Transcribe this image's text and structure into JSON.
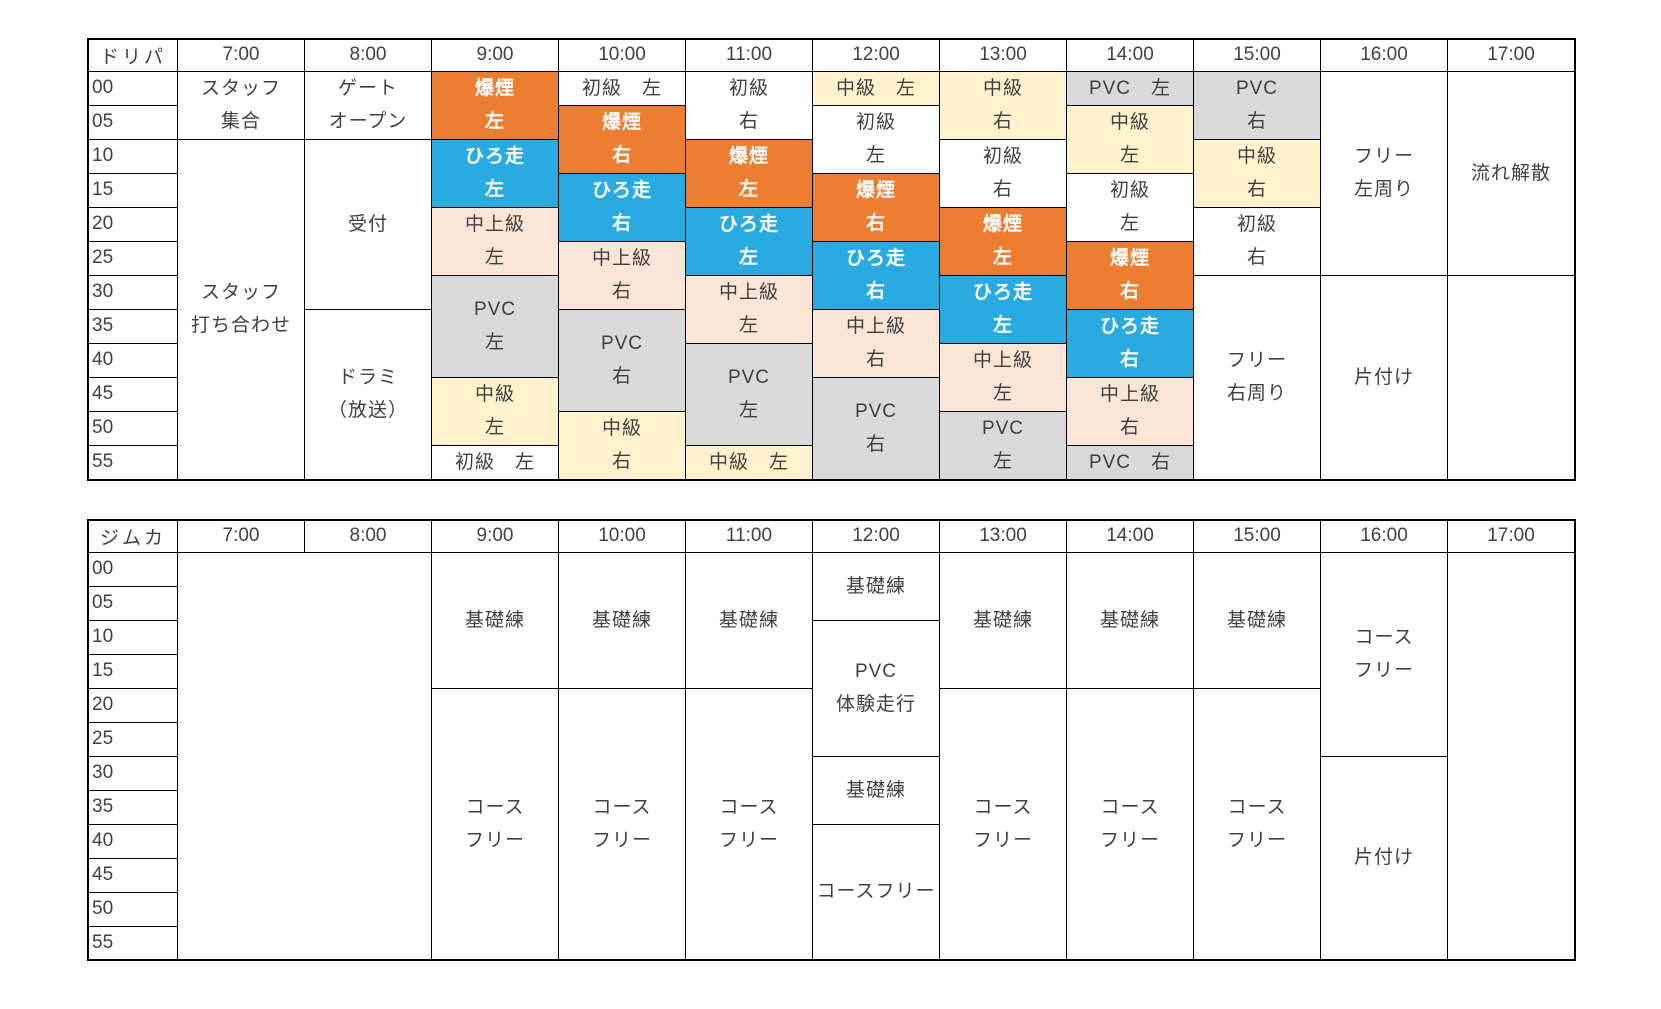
{
  "colors": {
    "orange": "#ED7D31",
    "blue": "#29ABE2",
    "peach": "#FBE5D6",
    "yellow": "#FFF2CC",
    "gray": "#D9D9D9",
    "white": "#FFFFFF",
    "border": "#000000",
    "text": "#404040",
    "text_on_accent": "#FFFFFF"
  },
  "tables": [
    {
      "name": "drift-park",
      "corner_label": "ドリパ",
      "time_headers": [
        "7:00",
        "8:00",
        "9:00",
        "10:00",
        "11:00",
        "12:00",
        "13:00",
        "14:00",
        "15:00",
        "16:00",
        "17:00"
      ],
      "minute_labels": [
        "00",
        "05",
        "10",
        "15",
        "20",
        "25",
        "30",
        "35",
        "40",
        "45",
        "50",
        "55"
      ],
      "cells": [
        {
          "col": 0,
          "row": 0,
          "rowspan": 2,
          "bg": "white",
          "lines": [
            "スタッフ",
            "集合"
          ]
        },
        {
          "col": 0,
          "row": 2,
          "rowspan": 10,
          "bg": "white",
          "lines": [
            "スタッフ",
            "打ち合わせ"
          ]
        },
        {
          "col": 1,
          "row": 0,
          "rowspan": 2,
          "bg": "white",
          "lines": [
            "ゲート",
            "オープン"
          ]
        },
        {
          "col": 1,
          "row": 2,
          "rowspan": 5,
          "bg": "white",
          "lines": [
            "受付"
          ]
        },
        {
          "col": 1,
          "row": 7,
          "rowspan": 5,
          "bg": "white",
          "lines": [
            "ドラミ",
            "（放送）"
          ]
        },
        {
          "col": 2,
          "row": 0,
          "rowspan": 2,
          "bg": "orange",
          "emphasis": true,
          "lines": [
            "爆煙",
            "左"
          ]
        },
        {
          "col": 2,
          "row": 2,
          "rowspan": 2,
          "bg": "blue",
          "emphasis": true,
          "lines": [
            "ひろ走",
            "左"
          ]
        },
        {
          "col": 2,
          "row": 4,
          "rowspan": 2,
          "bg": "peach",
          "lines": [
            "中上級",
            "左"
          ]
        },
        {
          "col": 2,
          "row": 6,
          "rowspan": 3,
          "bg": "gray",
          "lines": [
            "PVC",
            "左"
          ]
        },
        {
          "col": 2,
          "row": 9,
          "rowspan": 2,
          "bg": "yellow",
          "lines": [
            "中級",
            "左"
          ]
        },
        {
          "col": 2,
          "row": 11,
          "rowspan": 1,
          "bg": "white",
          "lines": [
            "初級　左"
          ]
        },
        {
          "col": 3,
          "row": 0,
          "rowspan": 1,
          "bg": "white",
          "lines": [
            "初級　左"
          ]
        },
        {
          "col": 3,
          "row": 1,
          "rowspan": 2,
          "bg": "orange",
          "emphasis": true,
          "lines": [
            "爆煙",
            "右"
          ]
        },
        {
          "col": 3,
          "row": 3,
          "rowspan": 2,
          "bg": "blue",
          "emphasis": true,
          "lines": [
            "ひろ走",
            "右"
          ]
        },
        {
          "col": 3,
          "row": 5,
          "rowspan": 2,
          "bg": "peach",
          "lines": [
            "中上級",
            "右"
          ]
        },
        {
          "col": 3,
          "row": 7,
          "rowspan": 3,
          "bg": "gray",
          "lines": [
            "PVC",
            "右"
          ]
        },
        {
          "col": 3,
          "row": 10,
          "rowspan": 2,
          "bg": "yellow",
          "lines": [
            "中級",
            "右"
          ]
        },
        {
          "col": 4,
          "row": 0,
          "rowspan": 2,
          "bg": "white",
          "lines": [
            "初級",
            "右"
          ]
        },
        {
          "col": 4,
          "row": 2,
          "rowspan": 2,
          "bg": "orange",
          "emphasis": true,
          "lines": [
            "爆煙",
            "左"
          ]
        },
        {
          "col": 4,
          "row": 4,
          "rowspan": 2,
          "bg": "blue",
          "emphasis": true,
          "lines": [
            "ひろ走",
            "左"
          ]
        },
        {
          "col": 4,
          "row": 6,
          "rowspan": 2,
          "bg": "peach",
          "lines": [
            "中上級",
            "左"
          ]
        },
        {
          "col": 4,
          "row": 8,
          "rowspan": 3,
          "bg": "gray",
          "lines": [
            "PVC",
            "左"
          ]
        },
        {
          "col": 4,
          "row": 11,
          "rowspan": 1,
          "bg": "yellow",
          "lines": [
            "中級　左"
          ]
        },
        {
          "col": 5,
          "row": 0,
          "rowspan": 1,
          "bg": "yellow",
          "lines": [
            "中級　左"
          ]
        },
        {
          "col": 5,
          "row": 1,
          "rowspan": 2,
          "bg": "white",
          "lines": [
            "初級",
            "左"
          ]
        },
        {
          "col": 5,
          "row": 3,
          "rowspan": 2,
          "bg": "orange",
          "emphasis": true,
          "lines": [
            "爆煙",
            "右"
          ]
        },
        {
          "col": 5,
          "row": 5,
          "rowspan": 2,
          "bg": "blue",
          "emphasis": true,
          "lines": [
            "ひろ走",
            "右"
          ]
        },
        {
          "col": 5,
          "row": 7,
          "rowspan": 2,
          "bg": "peach",
          "lines": [
            "中上級",
            "右"
          ]
        },
        {
          "col": 5,
          "row": 9,
          "rowspan": 3,
          "bg": "gray",
          "lines": [
            "PVC",
            "右"
          ]
        },
        {
          "col": 6,
          "row": 0,
          "rowspan": 2,
          "bg": "yellow",
          "lines": [
            "中級",
            "右"
          ]
        },
        {
          "col": 6,
          "row": 2,
          "rowspan": 2,
          "bg": "white",
          "lines": [
            "初級",
            "右"
          ]
        },
        {
          "col": 6,
          "row": 4,
          "rowspan": 2,
          "bg": "orange",
          "emphasis": true,
          "lines": [
            "爆煙",
            "左"
          ]
        },
        {
          "col": 6,
          "row": 6,
          "rowspan": 2,
          "bg": "blue",
          "emphasis": true,
          "lines": [
            "ひろ走",
            "左"
          ]
        },
        {
          "col": 6,
          "row": 8,
          "rowspan": 2,
          "bg": "peach",
          "lines": [
            "中上級",
            "左"
          ]
        },
        {
          "col": 6,
          "row": 10,
          "rowspan": 2,
          "bg": "gray",
          "lines": [
            "PVC",
            "左"
          ]
        },
        {
          "col": 7,
          "row": 0,
          "rowspan": 1,
          "bg": "gray",
          "lines": [
            "PVC　左"
          ]
        },
        {
          "col": 7,
          "row": 1,
          "rowspan": 2,
          "bg": "yellow",
          "lines": [
            "中級",
            "左"
          ]
        },
        {
          "col": 7,
          "row": 3,
          "rowspan": 2,
          "bg": "white",
          "lines": [
            "初級",
            "左"
          ]
        },
        {
          "col": 7,
          "row": 5,
          "rowspan": 2,
          "bg": "orange",
          "emphasis": true,
          "lines": [
            "爆煙",
            "右"
          ]
        },
        {
          "col": 7,
          "row": 7,
          "rowspan": 2,
          "bg": "blue",
          "emphasis": true,
          "lines": [
            "ひろ走",
            "右"
          ]
        },
        {
          "col": 7,
          "row": 9,
          "rowspan": 2,
          "bg": "peach",
          "lines": [
            "中上級",
            "右"
          ]
        },
        {
          "col": 7,
          "row": 11,
          "rowspan": 1,
          "bg": "gray",
          "lines": [
            "PVC　右"
          ]
        },
        {
          "col": 8,
          "row": 0,
          "rowspan": 2,
          "bg": "gray",
          "lines": [
            "PVC",
            "右"
          ]
        },
        {
          "col": 8,
          "row": 2,
          "rowspan": 2,
          "bg": "yellow",
          "lines": [
            "中級",
            "右"
          ]
        },
        {
          "col": 8,
          "row": 4,
          "rowspan": 2,
          "bg": "white",
          "lines": [
            "初級",
            "右"
          ]
        },
        {
          "col": 8,
          "row": 6,
          "rowspan": 6,
          "bg": "white",
          "lines": [
            "フリー",
            "右周り"
          ]
        },
        {
          "col": 9,
          "row": 0,
          "rowspan": 6,
          "bg": "white",
          "lines": [
            "フリー",
            "左周り"
          ]
        },
        {
          "col": 9,
          "row": 6,
          "rowspan": 6,
          "bg": "white",
          "lines": [
            "片付け"
          ]
        },
        {
          "col": 10,
          "row": 0,
          "rowspan": 6,
          "bg": "white",
          "lines": [
            "流れ解散"
          ]
        },
        {
          "col": 10,
          "row": 6,
          "rowspan": 6,
          "bg": "white",
          "lines": []
        }
      ]
    },
    {
      "name": "gymkhana",
      "corner_label": "ジムカ",
      "time_headers": [
        "7:00",
        "8:00",
        "9:00",
        "10:00",
        "11:00",
        "12:00",
        "13:00",
        "14:00",
        "15:00",
        "16:00",
        "17:00"
      ],
      "minute_labels": [
        "00",
        "05",
        "10",
        "15",
        "20",
        "25",
        "30",
        "35",
        "40",
        "45",
        "50",
        "55"
      ],
      "cells": [
        {
          "col": 0,
          "row": 0,
          "rowspan": 12,
          "colspan": 2,
          "bg": "white",
          "lines": []
        },
        {
          "col": 2,
          "row": 0,
          "rowspan": 4,
          "bg": "white",
          "lines": [
            "基礎練"
          ]
        },
        {
          "col": 2,
          "row": 4,
          "rowspan": 8,
          "bg": "white",
          "lines": [
            "コース",
            "フリー"
          ]
        },
        {
          "col": 3,
          "row": 0,
          "rowspan": 4,
          "bg": "white",
          "lines": [
            "基礎練"
          ]
        },
        {
          "col": 3,
          "row": 4,
          "rowspan": 8,
          "bg": "white",
          "lines": [
            "コース",
            "フリー"
          ]
        },
        {
          "col": 4,
          "row": 0,
          "rowspan": 4,
          "bg": "white",
          "lines": [
            "基礎練"
          ]
        },
        {
          "col": 4,
          "row": 4,
          "rowspan": 8,
          "bg": "white",
          "lines": [
            "コース",
            "フリー"
          ]
        },
        {
          "col": 5,
          "row": 0,
          "rowspan": 2,
          "bg": "white",
          "lines": [
            "基礎練"
          ]
        },
        {
          "col": 5,
          "row": 2,
          "rowspan": 4,
          "bg": "white",
          "lines": [
            "PVC",
            "体験走行"
          ]
        },
        {
          "col": 5,
          "row": 6,
          "rowspan": 2,
          "bg": "white",
          "lines": [
            "基礎練"
          ]
        },
        {
          "col": 5,
          "row": 8,
          "rowspan": 4,
          "bg": "white",
          "lines": [
            "コースフリー"
          ]
        },
        {
          "col": 6,
          "row": 0,
          "rowspan": 4,
          "bg": "white",
          "lines": [
            "基礎練"
          ]
        },
        {
          "col": 6,
          "row": 4,
          "rowspan": 8,
          "bg": "white",
          "lines": [
            "コース",
            "フリー"
          ]
        },
        {
          "col": 7,
          "row": 0,
          "rowspan": 4,
          "bg": "white",
          "lines": [
            "基礎練"
          ]
        },
        {
          "col": 7,
          "row": 4,
          "rowspan": 8,
          "bg": "white",
          "lines": [
            "コース",
            "フリー"
          ]
        },
        {
          "col": 8,
          "row": 0,
          "rowspan": 4,
          "bg": "white",
          "lines": [
            "基礎練"
          ]
        },
        {
          "col": 8,
          "row": 4,
          "rowspan": 8,
          "bg": "white",
          "lines": [
            "コース",
            "フリー"
          ]
        },
        {
          "col": 9,
          "row": 0,
          "rowspan": 6,
          "bg": "white",
          "lines": [
            "コース",
            "フリー"
          ]
        },
        {
          "col": 9,
          "row": 6,
          "rowspan": 6,
          "bg": "white",
          "lines": [
            "片付け"
          ]
        },
        {
          "col": 10,
          "row": 0,
          "rowspan": 12,
          "bg": "white",
          "lines": []
        }
      ]
    }
  ]
}
